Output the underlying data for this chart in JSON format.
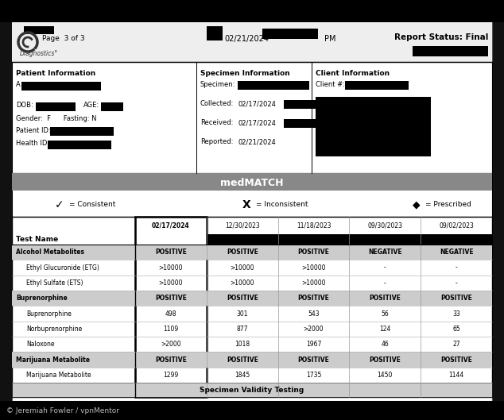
{
  "bg_outer": "#111111",
  "bg_doc": "#ffffff",
  "border_color": "#000000",
  "header_text_left": "Page  3 of 3",
  "header_date": "02/21/2024",
  "header_pm": "PM",
  "header_status": "Report Status: Final",
  "header_diagnostics": "Diagnostics°",
  "section_headers": [
    "Patient Information",
    "Specimen Information",
    "Client Information"
  ],
  "client_label": "Client #:",
  "medmatch_title": "medMATCH",
  "legend_consistent": "= Consistent",
  "legend_inconsistent": "= Inconsistent",
  "legend_prescribed": "= Prescribed",
  "col_dates": [
    "02/17/2024",
    "12/30/2023",
    "11/18/2023",
    "09/30/2023",
    "09/02/2023"
  ],
  "test_name_label": "Test Name",
  "rows": [
    {
      "name": "Alcohol Metabolites",
      "bold": true,
      "values": [
        "POSITIVE",
        "POSITIVE",
        "POSITIVE",
        "NEGATIVE",
        "NEGATIVE"
      ],
      "shaded": true
    },
    {
      "name": "Ethyl Glucuronide (ETG)",
      "bold": false,
      "values": [
        ">10000",
        ">10000",
        ">10000",
        "-",
        "-"
      ],
      "shaded": false
    },
    {
      "name": "Ethyl Sulfate (ETS)",
      "bold": false,
      "values": [
        ">10000",
        ">10000",
        ">10000",
        "-",
        "-"
      ],
      "shaded": false
    },
    {
      "name": "Buprenorphine",
      "bold": true,
      "values": [
        "POSITIVE",
        "POSITIVE",
        "POSITIVE",
        "POSITIVE",
        "POSITIVE"
      ],
      "shaded": true
    },
    {
      "name": "Buprenorphine",
      "bold": false,
      "values": [
        "498",
        "301",
        "543",
        "56",
        "33"
      ],
      "shaded": false
    },
    {
      "name": "Norbuprenorphine",
      "bold": false,
      "values": [
        "1109",
        "877",
        ">2000",
        "124",
        "65"
      ],
      "shaded": false
    },
    {
      "name": "Naloxone",
      "bold": false,
      "values": [
        ">2000",
        "1018",
        "1967",
        "46",
        "27"
      ],
      "shaded": false
    },
    {
      "name": "Marijuana Metabolite",
      "bold": true,
      "values": [
        "POSITIVE",
        "POSITIVE",
        "POSITIVE",
        "POSITIVE",
        "POSITIVE"
      ],
      "shaded": true
    },
    {
      "name": "Marijuana Metabolite",
      "bold": false,
      "values": [
        "1299",
        "1845",
        "1735",
        "1450",
        "1144"
      ],
      "shaded": false
    }
  ],
  "footer_text": "Specimen Validity Testing",
  "watermark": "© Jeremiah Fowler / vpnMentor",
  "shaded_row_color": "#cccccc",
  "medmatch_bar_color": "#888888"
}
